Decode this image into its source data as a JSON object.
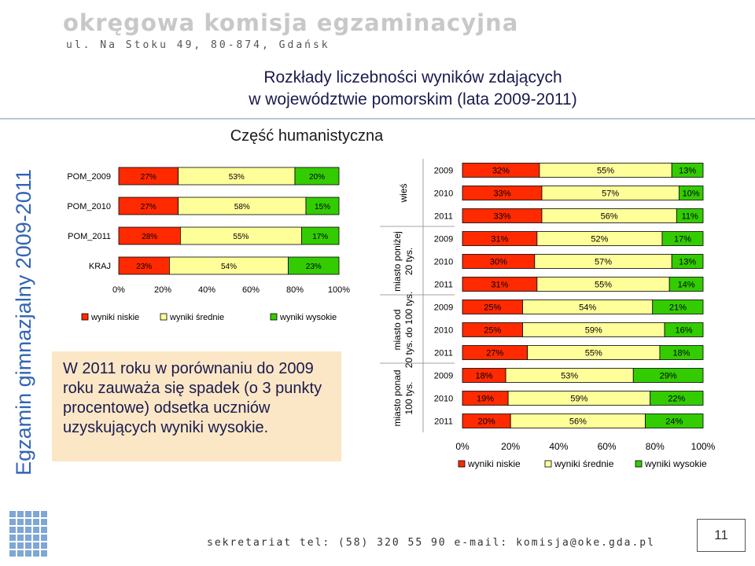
{
  "header": {
    "org_name": "okręgowa komisja egzaminacyjna",
    "address": "ul. Na Stoku 49, 80-874, Gdańsk"
  },
  "title": {
    "line1": "Rozkłady liczebności wyników zdających",
    "line2": "w województwie pomorskim (lata 2009-2011)"
  },
  "side_label": "Egzamin gimnazjalny 2009-2011",
  "section_title": "Część humanistyczna",
  "note": "W 2011 roku w porównaniu do 2009 roku zauważa się spadek (o 3 punkty procentowe) odsetka uczniów uzyskujących wyniki wysokie.",
  "footer": "sekretariat tel: (58) 320 55 90 e-mail: komisja@oke.gda.pl",
  "page_number": "11",
  "colors": {
    "low": "#ff2a00",
    "mid": "#ffff99",
    "high": "#33cc00",
    "accent": "#1a1a4e"
  },
  "chart_data": [
    {
      "type": "bar",
      "orientation": "horizontal",
      "stacked": true,
      "categories": [
        "POM_2009",
        "POM_2010",
        "POM_2011",
        "KRAJ"
      ],
      "series": [
        {
          "name": "wyniki niskie",
          "values": [
            27,
            27,
            28,
            23
          ],
          "labels": [
            "27%",
            "27%",
            "28%",
            "23%"
          ]
        },
        {
          "name": "wyniki średnie",
          "values": [
            53,
            58,
            55,
            54
          ],
          "labels": [
            "53%",
            "58%",
            "55%",
            "54%"
          ]
        },
        {
          "name": "wyniki wysokie",
          "values": [
            20,
            15,
            17,
            23
          ],
          "labels": [
            "20%",
            "15%",
            "17%",
            "23%"
          ]
        }
      ],
      "x_ticks": [
        "0%",
        "20%",
        "40%",
        "60%",
        "80%",
        "100%"
      ],
      "xlim": [
        0,
        100
      ],
      "grid": false,
      "legend": "bottom"
    },
    {
      "type": "bar",
      "orientation": "horizontal",
      "stacked": true,
      "groups": [
        {
          "name": "wieś",
          "years": [
            "2009",
            "2010",
            "2011"
          ]
        },
        {
          "name": "miasto poniżej 20 tys.",
          "years": [
            "2009",
            "2010",
            "2011"
          ]
        },
        {
          "name": "miasto od 20 tys. do 100 tys.",
          "years": [
            "2009",
            "2010",
            "2011"
          ]
        },
        {
          "name": "miasto ponad 100 tys.",
          "years": [
            "2009",
            "2010",
            "2011"
          ]
        }
      ],
      "series": [
        {
          "name": "wyniki niskie",
          "values": [
            32,
            33,
            33,
            31,
            30,
            31,
            25,
            25,
            27,
            18,
            19,
            20
          ],
          "labels": [
            "32%",
            "33%",
            "33%",
            "31%",
            "30%",
            "31%",
            "25%",
            "25%",
            "27%",
            "18%",
            "19%",
            "20%"
          ]
        },
        {
          "name": "wyniki średnie",
          "values": [
            55,
            57,
            56,
            52,
            57,
            55,
            54,
            59,
            55,
            53,
            59,
            56
          ],
          "labels": [
            "55%",
            "57%",
            "56%",
            "52%",
            "57%",
            "55%",
            "54%",
            "59%",
            "55%",
            "53%",
            "59%",
            "56%"
          ]
        },
        {
          "name": "wyniki wysokie",
          "values": [
            13,
            10,
            11,
            17,
            13,
            14,
            21,
            16,
            18,
            29,
            22,
            24
          ],
          "labels": [
            "13%",
            "10%",
            "11%",
            "17%",
            "13%",
            "14%",
            "21%",
            "16%",
            "18%",
            "29%",
            "22%",
            "24%"
          ]
        }
      ],
      "x_ticks": [
        "0%",
        "20%",
        "40%",
        "60%",
        "80%",
        "100%"
      ],
      "xlim": [
        0,
        100
      ],
      "grid": false,
      "legend": "bottom"
    }
  ]
}
